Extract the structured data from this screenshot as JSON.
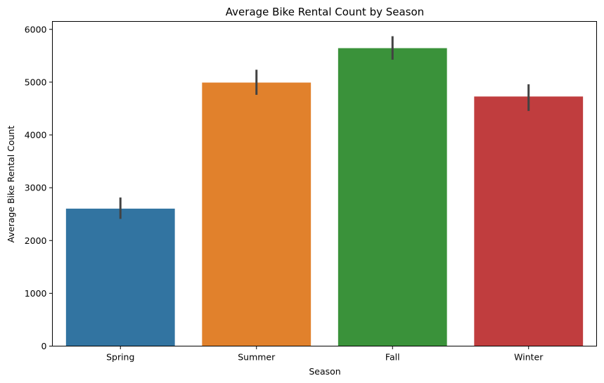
{
  "chart_data": {
    "type": "bar",
    "title": "Average Bike Rental Count by Season",
    "xlabel": "Season",
    "ylabel": "Average Bike Rental Count",
    "categories": [
      "Spring",
      "Summer",
      "Fall",
      "Winter"
    ],
    "values": [
      2604,
      4992,
      5644,
      4728
    ],
    "error_low": [
      2410,
      4760,
      5425,
      4455
    ],
    "error_high": [
      2815,
      5235,
      5870,
      4960
    ],
    "colors": [
      "#3274a1",
      "#e1812c",
      "#3a923a",
      "#c03d3e"
    ],
    "error_color": "#424242",
    "ylim": [
      0,
      6150
    ],
    "yticks": [
      0,
      1000,
      2000,
      3000,
      4000,
      5000,
      6000
    ],
    "yticklabels": [
      "0",
      "1000",
      "2000",
      "3000",
      "4000",
      "5000",
      "6000"
    ],
    "grid": false,
    "legend": "none"
  }
}
